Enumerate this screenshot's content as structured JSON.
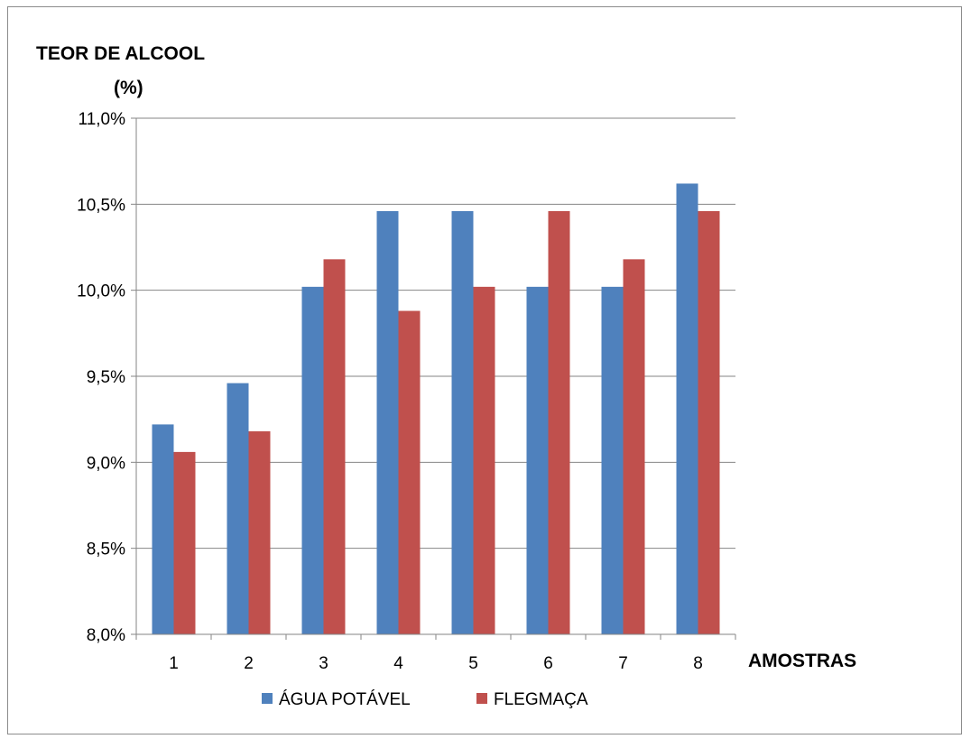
{
  "chart_data": {
    "type": "bar",
    "ylabel": [
      "TEOR DE ALCOOL",
      "(%)"
    ],
    "xlabel": "AMOSTRAS",
    "categories": [
      "1",
      "2",
      "3",
      "4",
      "5",
      "6",
      "7",
      "8"
    ],
    "series": [
      {
        "name": "ÁGUA POTÁVEL",
        "color": "#4f81bd",
        "values": [
          9.22,
          9.46,
          10.02,
          10.46,
          10.46,
          10.02,
          10.02,
          10.62
        ]
      },
      {
        "name": "FLEGMAÇA",
        "color": "#c0504d",
        "values": [
          9.06,
          9.18,
          10.18,
          9.88,
          10.02,
          10.46,
          10.18,
          10.46
        ]
      }
    ],
    "ylim": [
      8.0,
      11.0
    ],
    "yticks": [
      {
        "value": 8.0,
        "label": "8,0%"
      },
      {
        "value": 8.5,
        "label": "8,5%"
      },
      {
        "value": 9.0,
        "label": "9,0%"
      },
      {
        "value": 9.5,
        "label": "9,5%"
      },
      {
        "value": 10.0,
        "label": "10,0%"
      },
      {
        "value": 10.5,
        "label": "10,5%"
      },
      {
        "value": 11.0,
        "label": "11,0%"
      }
    ],
    "grid": true,
    "legend_position": "bottom"
  }
}
